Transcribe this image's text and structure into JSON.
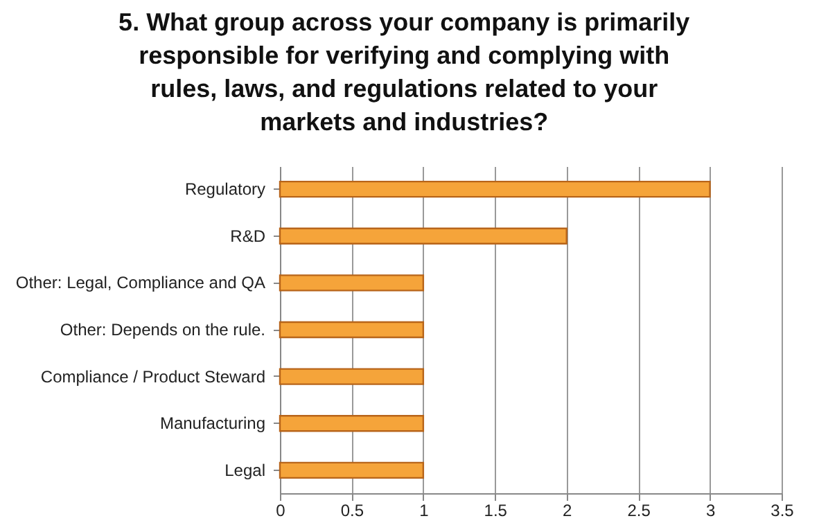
{
  "chart_data": {
    "type": "bar",
    "orientation": "horizontal",
    "title": "5. What group across your company is primarily responsible for verifying and complying with rules, laws, and regulations related to your markets and industries?",
    "categories": [
      "Regulatory",
      "R&D",
      "Other: Legal, Compliance and QA",
      "Other: Depends on the rule.",
      "Compliance / Product Steward",
      "Manufacturing",
      "Legal"
    ],
    "values": [
      3,
      2,
      1,
      1,
      1,
      1,
      1
    ],
    "color": "#f5a43a",
    "xlim": [
      0,
      3.5
    ],
    "xticks": [
      0,
      0.5,
      1,
      1.5,
      2,
      2.5,
      3,
      3.5
    ],
    "grid": "x"
  }
}
